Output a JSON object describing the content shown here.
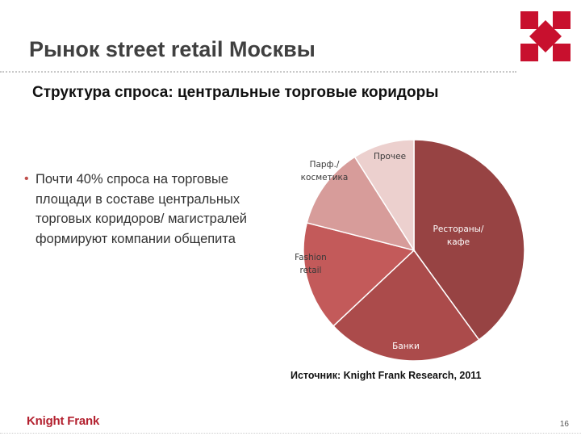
{
  "slide": {
    "title": "Рынок street retail Москвы",
    "subtitle": "Структура спроса: центральные торговые коридоры",
    "bullet": "Почти 40% спроса на торговые площади в составе центральных торговых коридоров/ магистралей формируют компании общепита",
    "source": "Источник: Knight Frank Research, 2011",
    "brand": "Knight Frank",
    "page_number": "16"
  },
  "colors": {
    "accent": "#c0504d",
    "brand": "#b3212f",
    "logo": "#c8102e"
  },
  "chart_data": {
    "type": "pie",
    "title": "",
    "slices": [
      {
        "label": "Рестораны/ кафе",
        "value": 40,
        "color": "#974343"
      },
      {
        "label": "Банки",
        "value": 23,
        "color": "#ab4b4b"
      },
      {
        "label": "Fashion retail",
        "value": 16,
        "color": "#c35a5a"
      },
      {
        "label": "Парф./ косметика",
        "value": 12,
        "color": "#d79c9a"
      },
      {
        "label": "Прочее",
        "value": 9,
        "color": "#ecd0ce"
      }
    ],
    "label_colors": [
      "#ffffff",
      "#ffffff",
      "#3a3a3a",
      "#3a3a3a",
      "#3a3a3a"
    ],
    "start_angle_deg": 0,
    "direction": "clockwise",
    "legend": "none"
  }
}
